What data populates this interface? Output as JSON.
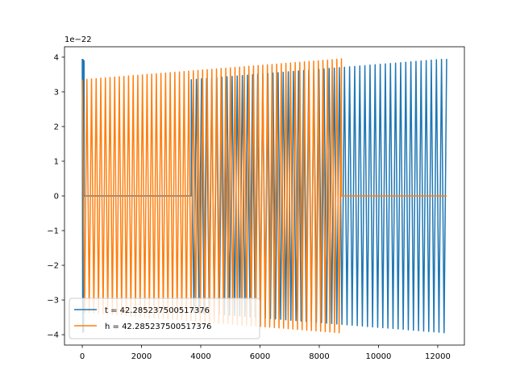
{
  "chart_data": {
    "type": "line",
    "title": "",
    "xlabel": "",
    "ylabel": "",
    "y_offset_label": "1e−22",
    "xlim": [
      -600,
      12900
    ],
    "ylim": [
      -4.3,
      4.3
    ],
    "x_ticks": [
      0,
      2000,
      4000,
      6000,
      8000,
      10000,
      12000
    ],
    "x_tick_labels": [
      "0",
      "2000",
      "4000",
      "6000",
      "8000",
      "10000",
      "12000"
    ],
    "y_ticks": [
      -4,
      -3,
      -2,
      -1,
      0,
      1,
      2,
      3,
      4
    ],
    "y_tick_labels": [
      "−4",
      "−3",
      "−2",
      "−1",
      "0",
      "1",
      "2",
      "3",
      "4"
    ],
    "grid": false,
    "legend_position": "lower-left",
    "series": [
      {
        "name": "t = 42.285237500517376",
        "color": "#1f77b4",
        "segments": [
          {
            "kind": "oscillation",
            "x_start": 0,
            "x_end": 60,
            "amp_start": 3.95,
            "amp_end": 3.9,
            "cycles": 0.5
          },
          {
            "kind": "flat",
            "x_start": 60,
            "x_end": 3680,
            "value": 0
          },
          {
            "kind": "oscillation",
            "x_start": 3680,
            "x_end": 12300,
            "amp_start": 3.35,
            "amp_end": 3.95,
            "cycles": 50
          }
        ]
      },
      {
        "name": "h = 42.285237500517376",
        "color": "#ff7f0e",
        "segments": [
          {
            "kind": "oscillation",
            "x_start": 0,
            "x_end": 8750,
            "amp_start": 3.35,
            "amp_end": 3.95,
            "cycles": 56
          },
          {
            "kind": "flat",
            "x_start": 8750,
            "x_end": 12300,
            "value": 0
          }
        ]
      }
    ]
  }
}
